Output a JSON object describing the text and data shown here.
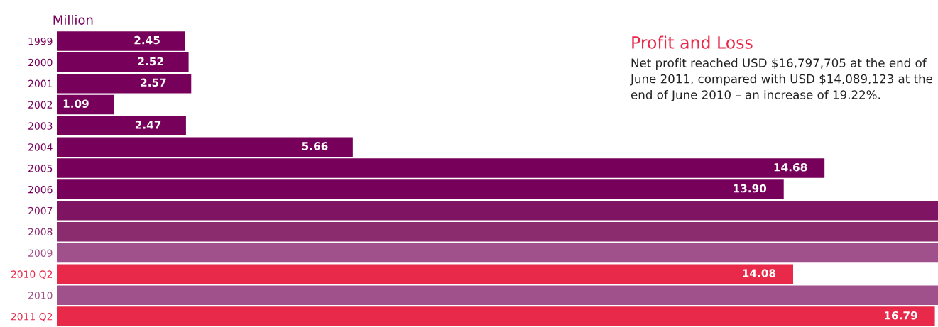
{
  "chart_data": {
    "type": "bar",
    "orientation": "horizontal",
    "title": "Profit and Loss",
    "annotations": [
      "Net profit reached USD $16,797,705 at the end of June 2011, compared with USD $14,089,123 at the end of June 2010 – an increase of 19.22%."
    ],
    "xlabel": "Million",
    "categories": [
      "1999",
      "2000",
      "2001",
      "2002",
      "2003",
      "2004",
      "2005",
      "2006",
      "2007",
      "2008",
      "2009",
      "2010 Q2",
      "2010",
      "2011 Q2"
    ],
    "values": [
      2.45,
      2.52,
      2.57,
      1.09,
      2.47,
      5.66,
      14.68,
      13.9,
      16.85,
      16.85,
      16.85,
      14.08,
      16.85,
      16.79
    ],
    "value_labels": [
      "2.45",
      "2.52",
      "2.57",
      "1.09",
      "2.47",
      "5.66",
      "14.68",
      "13.90",
      null,
      null,
      null,
      "14.08",
      null,
      "16.79"
    ],
    "colors": [
      "#76005a",
      "#76005a",
      "#76005a",
      "#76005a",
      "#76005a",
      "#76005a",
      "#76005a",
      "#76005a",
      "#7e1462",
      "#8a2c6e",
      "#a0508a",
      "#e8294a",
      "#a0508a",
      "#e8294a"
    ],
    "xlim": [
      0,
      16.85
    ],
    "tick_labels": "y",
    "grid": false,
    "legend": false
  }
}
